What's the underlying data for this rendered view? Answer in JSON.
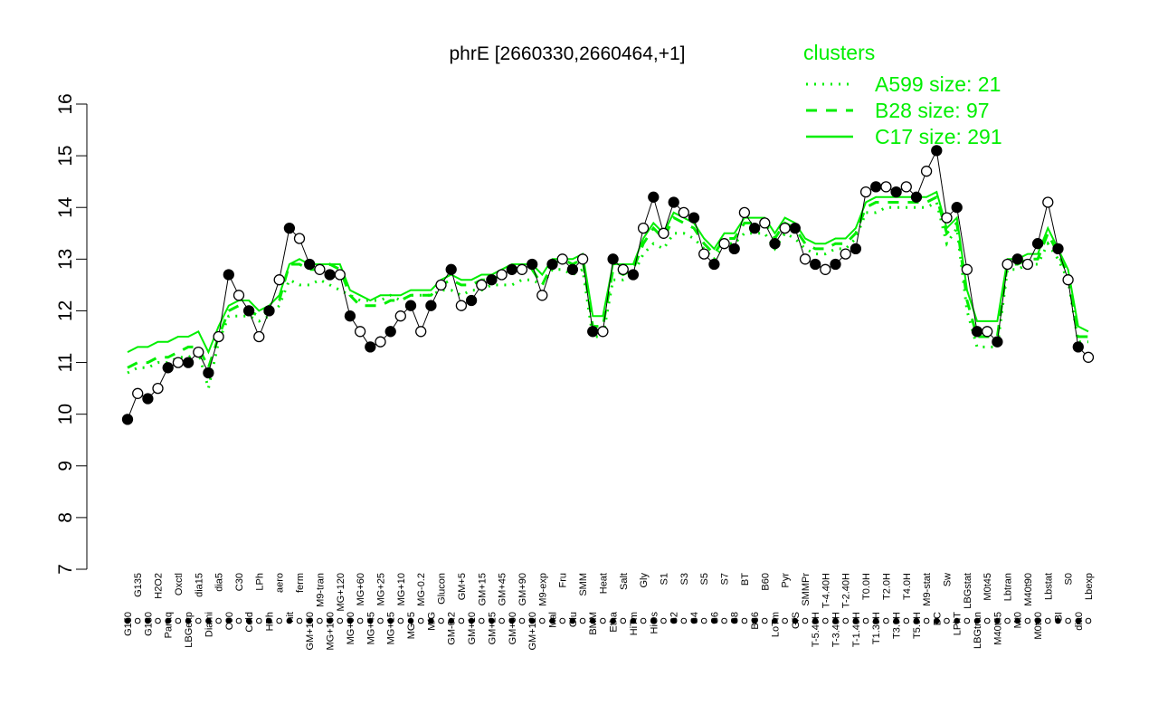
{
  "chart_data": {
    "type": "line",
    "title": "phrE [2660330,2660464,+1]",
    "xlabel": "",
    "ylabel": "",
    "ylim": [
      7,
      16
    ],
    "yticks": [
      7,
      8,
      9,
      10,
      11,
      12,
      13,
      14,
      15,
      16
    ],
    "grid": false,
    "legend": {
      "title": "clusters",
      "placement": "top-right",
      "entries": [
        {
          "label": "A599 size: 21",
          "style": "dotted"
        },
        {
          "label": "B28 size: 97",
          "style": "dashed"
        },
        {
          "label": "C17 size: 291",
          "style": "solid"
        }
      ]
    },
    "tick_labels": [
      "G150",
      "G135",
      "G180",
      "H2O2",
      "Paraq",
      "Oxctl",
      "LBGexp",
      "dia15",
      "Diami",
      "dia5",
      "C90",
      "C30",
      "Cold",
      "LPh",
      "HPh",
      "aero",
      "nit",
      "ferm",
      "GM+150",
      "M9-tran",
      "MG+150",
      "MG+120",
      "MG+90",
      "MG+60",
      "MG+45",
      "MG+25",
      "MG+15",
      "MG+10",
      "MG+5",
      "MG-0.2",
      "M/G",
      "Glucon",
      "GM-0.2",
      "GM+5",
      "GM+10",
      "GM+15",
      "GM+25",
      "GM+45",
      "GM+60",
      "GM+90",
      "GM+120",
      "M9-exp",
      "Mal",
      "Fru",
      "Glu",
      "SMM",
      "BMM",
      "Heat",
      "Etha",
      "Salt",
      "HiTm",
      "Gly",
      "HiOs",
      "S1",
      "S2",
      "S3",
      "S4",
      "S5",
      "S6",
      "S7",
      "S8",
      "BT",
      "B36",
      "B60",
      "LoTm",
      "Pyr",
      "G/S",
      "SMMPr",
      "T-5.40H",
      "T-4.40H",
      "T-3.40H",
      "T-2.40H",
      "T-1.40H",
      "T0.0H",
      "T1.30H",
      "T2.0H",
      "T3.0H",
      "T4.0H",
      "T5.0H",
      "M9-stat",
      "BC",
      "Sw",
      "LPhT",
      "LBGstat",
      "LBGtran",
      "M0t45",
      "M40t45",
      "Lbtran",
      "Mt0",
      "M40t90",
      "M0t90",
      "Lbstat",
      "BI",
      "S0",
      "dia0",
      "Lbexp"
    ],
    "dot_series": [
      {
        "values": [
          9.9,
          10.4,
          10.3,
          10.5,
          10.9,
          11.0,
          11.0,
          11.2,
          10.8,
          11.5,
          12.7,
          12.3,
          12.0,
          11.5,
          12.0,
          12.6,
          13.6,
          13.4,
          12.9,
          12.8,
          12.7,
          12.7,
          11.9,
          11.6,
          11.3,
          11.4,
          11.6,
          11.9,
          12.1,
          11.6,
          12.1,
          12.5,
          12.8,
          12.1,
          12.2,
          12.5,
          12.6,
          12.7,
          12.8,
          12.8,
          12.9,
          12.3,
          12.9,
          13.0,
          12.8,
          13.0,
          11.6,
          11.6,
          13.0,
          12.8,
          12.7,
          13.6,
          14.2,
          13.5,
          14.1,
          13.9,
          13.8,
          13.1,
          12.9,
          13.3,
          13.2,
          13.9,
          13.6,
          13.7,
          13.3,
          13.6,
          13.6,
          13.0,
          12.9,
          12.8,
          12.9,
          13.1,
          13.2,
          14.3,
          14.4,
          14.4,
          14.3,
          14.4,
          14.2,
          14.7,
          15.1,
          13.8,
          14.0,
          12.8,
          11.6,
          11.6,
          11.4,
          12.9,
          13.0,
          12.9,
          13.3,
          14.1,
          13.2,
          12.6,
          11.3,
          11.1
        ]
      }
    ],
    "cluster_lines": [
      {
        "name": "A599 size: 21",
        "style": "dotted",
        "values": [
          10.8,
          10.9,
          10.9,
          11.0,
          11.0,
          11.1,
          11.1,
          11.2,
          10.5,
          11.4,
          11.9,
          11.9,
          11.9,
          11.8,
          11.9,
          12.1,
          12.6,
          12.5,
          12.5,
          12.6,
          12.5,
          12.4,
          12.3,
          12.2,
          12.2,
          12.2,
          12.3,
          12.2,
          12.3,
          12.3,
          12.3,
          12.4,
          12.4,
          12.3,
          12.4,
          12.4,
          12.5,
          12.5,
          12.5,
          12.6,
          12.6,
          12.5,
          12.8,
          12.8,
          12.7,
          12.8,
          11.5,
          11.5,
          12.6,
          12.6,
          12.7,
          13.1,
          13.3,
          13.2,
          13.5,
          13.5,
          13.4,
          13.2,
          13.0,
          13.3,
          13.3,
          13.5,
          13.5,
          13.5,
          13.2,
          13.5,
          13.4,
          13.2,
          13.1,
          13.1,
          13.2,
          13.2,
          13.4,
          13.9,
          13.9,
          14.0,
          14.0,
          14.0,
          14.0,
          14.0,
          14.1,
          13.3,
          13.6,
          12.0,
          11.3,
          11.3,
          11.3,
          12.8,
          12.8,
          12.9,
          12.9,
          13.3,
          13.0,
          12.6,
          11.4,
          11.4
        ]
      },
      {
        "name": "B28 size: 97",
        "style": "dashed",
        "values": [
          10.9,
          11.0,
          11.0,
          11.1,
          11.1,
          11.2,
          11.3,
          11.3,
          10.9,
          11.5,
          12.0,
          12.1,
          12.0,
          11.9,
          12.0,
          12.2,
          12.9,
          12.9,
          12.8,
          12.8,
          12.9,
          12.8,
          12.3,
          12.1,
          12.1,
          12.1,
          12.2,
          12.2,
          12.3,
          12.3,
          12.3,
          12.5,
          12.6,
          12.5,
          12.5,
          12.6,
          12.6,
          12.7,
          12.8,
          12.8,
          12.8,
          12.5,
          12.9,
          13.0,
          12.9,
          13.0,
          11.7,
          11.7,
          12.8,
          12.7,
          12.8,
          13.3,
          13.6,
          13.4,
          13.8,
          13.7,
          13.6,
          13.3,
          13.1,
          13.4,
          13.4,
          13.7,
          13.7,
          13.7,
          13.4,
          13.7,
          13.6,
          13.3,
          13.2,
          13.2,
          13.3,
          13.3,
          13.5,
          14.0,
          14.1,
          14.1,
          14.1,
          14.1,
          14.1,
          14.1,
          14.2,
          13.5,
          13.7,
          12.2,
          11.5,
          11.5,
          11.5,
          12.9,
          12.9,
          13.0,
          13.0,
          13.5,
          13.1,
          12.7,
          11.5,
          11.5
        ]
      },
      {
        "name": "C17 size: 291",
        "style": "solid",
        "values": [
          11.2,
          11.3,
          11.3,
          11.4,
          11.4,
          11.5,
          11.5,
          11.6,
          11.2,
          11.7,
          12.1,
          12.2,
          12.2,
          12.0,
          12.1,
          12.3,
          12.9,
          13.0,
          12.9,
          12.9,
          12.9,
          12.9,
          12.4,
          12.3,
          12.2,
          12.3,
          12.3,
          12.3,
          12.4,
          12.4,
          12.4,
          12.6,
          12.7,
          12.6,
          12.6,
          12.7,
          12.7,
          12.8,
          12.9,
          12.9,
          12.9,
          12.7,
          13.0,
          13.0,
          13.0,
          13.1,
          11.9,
          11.9,
          12.9,
          12.9,
          12.9,
          13.4,
          13.7,
          13.5,
          13.9,
          13.8,
          13.7,
          13.4,
          13.2,
          13.5,
          13.5,
          13.8,
          13.8,
          13.8,
          13.5,
          13.8,
          13.7,
          13.4,
          13.3,
          13.3,
          13.4,
          13.4,
          13.6,
          14.1,
          14.2,
          14.2,
          14.2,
          14.2,
          14.2,
          14.2,
          14.3,
          13.6,
          13.8,
          12.4,
          11.8,
          11.8,
          11.8,
          13.0,
          13.0,
          13.1,
          13.1,
          13.6,
          13.2,
          12.8,
          11.7,
          11.6
        ]
      }
    ],
    "colors": {
      "clusters": "#00ee00",
      "points_stroke": "#000000",
      "axis": "#000000"
    }
  }
}
